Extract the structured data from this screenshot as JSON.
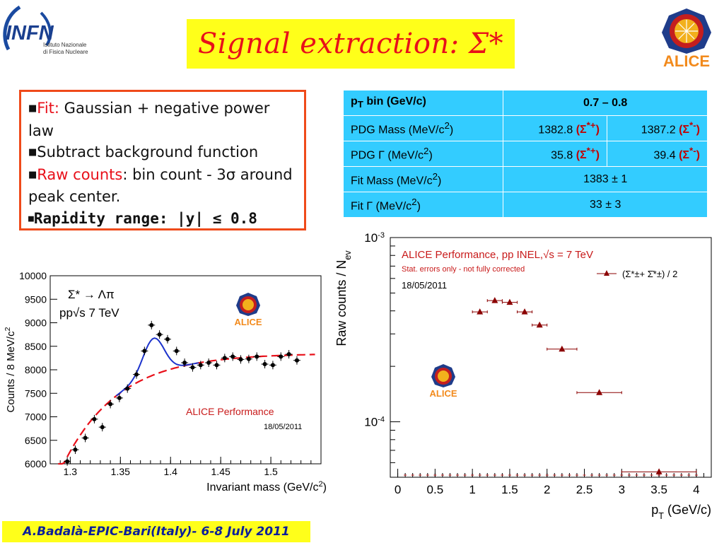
{
  "header": {
    "title": "Signal extraction: Σ*",
    "infn_logo": {
      "name": "INFN",
      "line1": "Istituto Nazionale",
      "line2": "di Fisica Nucleare"
    },
    "alice_logo_text": "ALICE"
  },
  "info": {
    "fit_label": "Fit:",
    "fit_text": " Gaussian + negative power law",
    "subtract_text": "Subtract background function",
    "raw_label": "Raw counts",
    "raw_text": ": bin count - 3σ around peak center.",
    "rapidity_text": "Rapidity range: |y| ≤ 0.8"
  },
  "table": {
    "header_left": "pT bin      (GeV/c)",
    "header_right": "0.7 – 0.8",
    "rows": [
      {
        "label": "PDG Mass  (MeV/c2)",
        "v1": "1382.8",
        "s1": "(Σ*+)",
        "v2": "1387.2",
        "s2": "(Σ*-)"
      },
      {
        "label": "PDG Γ        (MeV/c2)",
        "v1": "35.8",
        "s1": "(Σ*+)",
        "v2": "39.4",
        "s2": "(Σ*-)"
      },
      {
        "label": "Fit Mass   (MeV/c2)",
        "value": "1383 ± 1"
      },
      {
        "label": "Fit  Γ         (MeV/c2)",
        "value": "33 ± 3"
      }
    ]
  },
  "footer": {
    "text": "A.Badalà-EPIC-Bari(Italy)- 6-8 July 2011"
  },
  "chart_data": [
    {
      "type": "scatter",
      "xlabel": "Invariant mass (GeV/c2)",
      "ylabel": "Counts / 8 MeV/c2",
      "xlim": [
        1.28,
        1.55
      ],
      "ylim": [
        6000,
        10000
      ],
      "xticks": [
        "1.3",
        "1.35",
        "1.4",
        "1.45",
        "1.5"
      ],
      "yticks": [
        "6000",
        "6500",
        "7000",
        "7500",
        "8000",
        "8500",
        "9000",
        "9500",
        "10000"
      ],
      "annotation_decay": "Σ* → Λπ",
      "annotation_energy": "pp√s 7 TeV",
      "label": "ALICE Performance",
      "date": "18/05/2011",
      "logo_text": "ALICE",
      "x": [
        1.297,
        1.305,
        1.315,
        1.324,
        1.332,
        1.34,
        1.349,
        1.357,
        1.366,
        1.374,
        1.381,
        1.389,
        1.397,
        1.406,
        1.414,
        1.422,
        1.43,
        1.438,
        1.446,
        1.454,
        1.462,
        1.47,
        1.478,
        1.486,
        1.494,
        1.502,
        1.51,
        1.518,
        1.526
      ],
      "y": [
        6050,
        6300,
        6550,
        6950,
        6780,
        7270,
        7400,
        7600,
        7900,
        8400,
        8950,
        8750,
        8650,
        8400,
        8150,
        8050,
        8100,
        8150,
        8100,
        8250,
        8280,
        8220,
        8230,
        8280,
        8120,
        8100,
        8280,
        8330,
        8200
      ],
      "series": [
        {
          "name": "fit",
          "color": "#1c33cc"
        },
        {
          "name": "background",
          "color": "#e8101a"
        }
      ]
    },
    {
      "type": "scatter",
      "xlabel": "pT (GeV/c)",
      "ylabel": "Raw counts / Nev",
      "xlim": [
        -0.1,
        4.2
      ],
      "ylim": [
        5e-05,
        0.001
      ],
      "yscale": "log",
      "xticks": [
        "0",
        "0.5",
        "1",
        "1.5",
        "2",
        "2.5",
        "3",
        "3.5",
        "4"
      ],
      "yticks": [
        "10-3",
        "10-4"
      ],
      "title": "ALICE Performance, pp INEL,√s = 7 TeV",
      "subtitle": "Stat. errors only - not fully corrected",
      "date": "18/05/2011",
      "legend": "(Σ*±+ Σ̄*±) / 2",
      "logo_text": "ALICE",
      "color": "#8b0000",
      "x": [
        1.1,
        1.3,
        1.5,
        1.7,
        1.9,
        2.2,
        2.7,
        3.5
      ],
      "xerr": [
        0.1,
        0.1,
        0.1,
        0.1,
        0.1,
        0.2,
        0.3,
        0.5
      ],
      "y": [
        0.000395,
        0.000455,
        0.000445,
        0.000395,
        0.000335,
        0.000248,
        0.000144,
        5.35e-05
      ]
    }
  ]
}
